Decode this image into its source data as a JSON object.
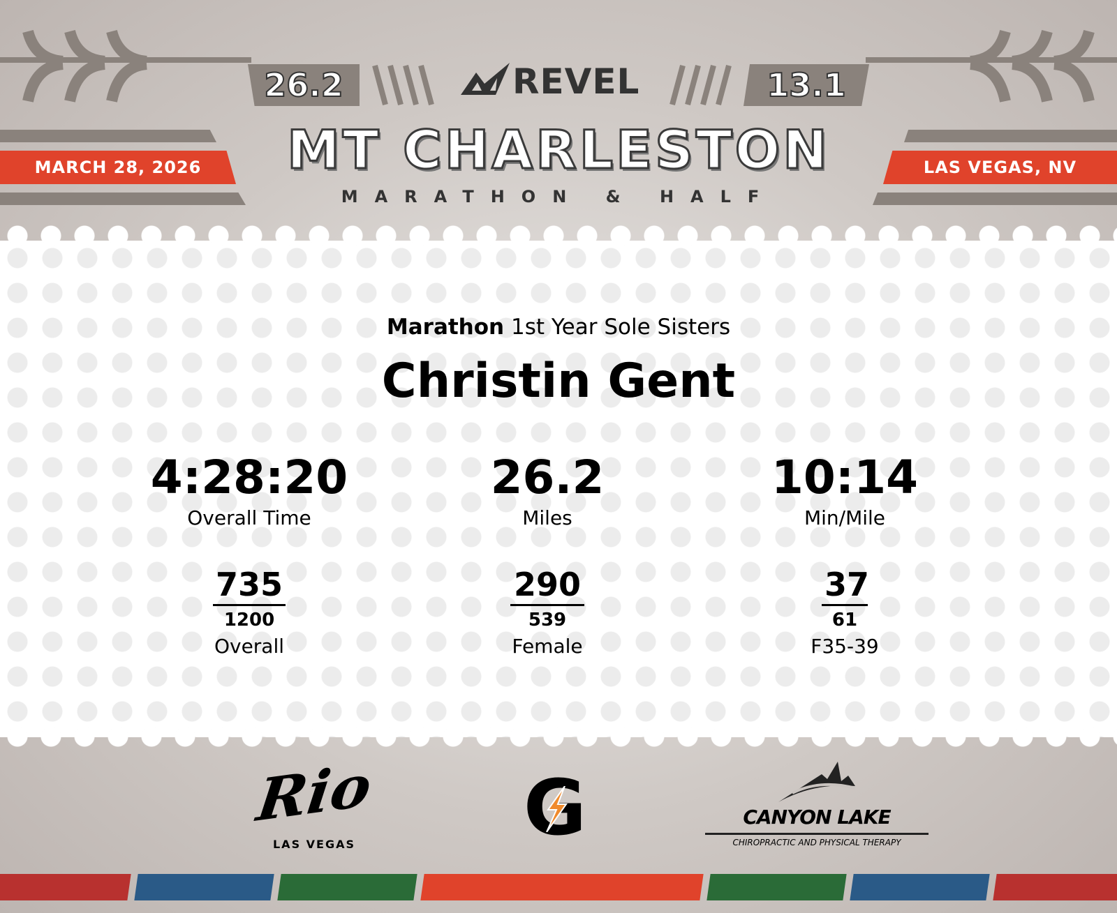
{
  "header": {
    "left_distance": "26.2",
    "right_distance": "13.1",
    "brand": "REVEL",
    "title": "MT CHARLESTON",
    "subtitle": "MARATHON & HALF",
    "date": "MARCH 28, 2026",
    "location": "LAS VEGAS, NV"
  },
  "result": {
    "race": "Marathon",
    "team": "1st Year Sole Sisters",
    "name": "Christin Gent",
    "stats": [
      {
        "value": "4:28:20",
        "label": "Overall Time"
      },
      {
        "value": "26.2",
        "label": "Miles"
      },
      {
        "value": "10:14",
        "label": "Min/Mile"
      }
    ],
    "ranks": [
      {
        "place": "735",
        "total": "1200",
        "label": "Overall"
      },
      {
        "place": "290",
        "total": "539",
        "label": "Female"
      },
      {
        "place": "37",
        "total": "61",
        "label": "F35-39"
      }
    ]
  },
  "sponsors": {
    "rio": {
      "name": "Rio",
      "sub": "LAS VEGAS"
    },
    "gatorade": {
      "name": "G"
    },
    "canyon": {
      "name": "CANYON LAKE",
      "sub": "CHIROPRACTIC AND PHYSICAL THERAPY"
    }
  },
  "colors": {
    "accent": "#e0432b",
    "gray": "#8a827c",
    "red": "#b8312f",
    "blue": "#2a5a87",
    "green": "#2a6b37"
  }
}
